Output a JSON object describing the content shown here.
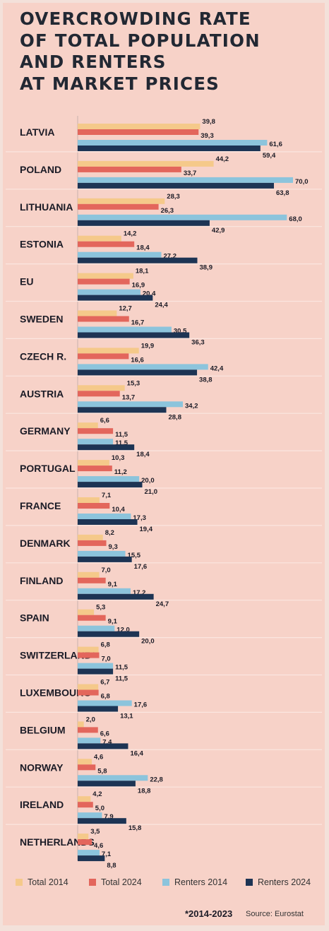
{
  "title_lines": [
    "OVERCROWDING RATE",
    "OF TOTAL POPULATION",
    "AND RENTERS",
    "AT MARKET PRICES"
  ],
  "footnote": "*2014-2023",
  "source": "Source: Eurostat",
  "colors": {
    "background": "#f7d2c8",
    "total_2014": "#f5c98a",
    "total_2024": "#e3665c",
    "renters_2014": "#8cc4dc",
    "renters_2024": "#1d3454"
  },
  "chart_data": {
    "type": "bar",
    "orientation": "horizontal",
    "title": "OVERCROWDING RATE OF TOTAL POPULATION AND RENTERS AT MARKET PRICES",
    "xlabel": "",
    "ylabel": "",
    "xlim": [
      0,
      70
    ],
    "grid": false,
    "legend_position": "bottom",
    "categories": [
      "LATVIA",
      "POLAND",
      "LITHUANIA",
      "ESTONIA",
      "EU",
      "SWEDEN",
      "CZECH R.",
      "AUSTRIA",
      "GERMANY",
      "PORTUGAL",
      "FRANCE",
      "DENMARK",
      "FINLAND",
      "SPAIN",
      "SWITZERLAND*",
      "LUXEMBOURG",
      "BELGIUM",
      "NORWAY",
      "IRELAND",
      "NETHERLANDS"
    ],
    "series": [
      {
        "name": "Total 2014",
        "color": "#f5c98a",
        "values": [
          39.8,
          44.2,
          28.3,
          14.2,
          18.1,
          12.7,
          19.9,
          15.3,
          6.6,
          10.3,
          7.1,
          8.2,
          7.0,
          5.3,
          6.8,
          6.7,
          2.0,
          4.6,
          4.2,
          3.5
        ],
        "labels": [
          "39,8",
          "44,2",
          "28,3",
          "14,2",
          "18,1",
          "12,7",
          "19,9",
          "15,3",
          "6,6",
          "10,3",
          "7,1",
          "8,2",
          "7,0",
          "5,3",
          "6,8",
          "6,7",
          "2,0",
          "4,6",
          "4,2",
          "3,5"
        ]
      },
      {
        "name": "Total 2024",
        "color": "#e3665c",
        "values": [
          39.3,
          33.7,
          26.3,
          18.4,
          16.9,
          16.7,
          16.6,
          13.7,
          11.5,
          11.2,
          10.4,
          9.3,
          9.1,
          9.1,
          7.0,
          6.8,
          6.6,
          5.8,
          5.0,
          4.6
        ],
        "labels": [
          "39,3",
          "33,7",
          "26,3",
          "18,4",
          "16,9",
          "16,7",
          "16,6",
          "13,7",
          "11,5",
          "11,2",
          "10,4",
          "9,3",
          "9,1",
          "9,1",
          "7,0",
          "6,8",
          "6,6",
          "5,8",
          "5,0",
          "4,6"
        ]
      },
      {
        "name": "Renters 2014",
        "color": "#8cc4dc",
        "values": [
          61.6,
          70.0,
          68.0,
          27.2,
          20.4,
          30.5,
          42.4,
          34.2,
          11.5,
          20.0,
          17.3,
          15.5,
          17.2,
          12.0,
          11.5,
          17.6,
          7.4,
          22.8,
          7.9,
          7.1
        ],
        "labels": [
          "61,6",
          "70,0",
          "68,0",
          "27,2",
          "20,4",
          "30,5",
          "42,4",
          "34,2",
          "11,5",
          "20,0",
          "17,3",
          "15,5",
          "17,2",
          "12,0",
          "11,5",
          "17,6",
          "7,4",
          "22,8",
          "7,9",
          "7,1"
        ]
      },
      {
        "name": "Renters 2024",
        "color": "#1d3454",
        "values": [
          59.4,
          63.8,
          42.9,
          38.9,
          24.4,
          36.3,
          38.8,
          28.8,
          18.4,
          21.0,
          19.4,
          17.6,
          24.7,
          20.0,
          11.5,
          13.1,
          16.4,
          18.8,
          15.8,
          8.8
        ],
        "labels": [
          "59,4",
          "63,8",
          "42,9",
          "38,9",
          "24,4",
          "36,3",
          "38,8",
          "28,8",
          "18,4",
          "21,0",
          "19,4",
          "17,6",
          "24,7",
          "20,0",
          "11,5",
          "13,1",
          "16,4",
          "18,8",
          "15,8",
          "8,8"
        ]
      }
    ]
  }
}
